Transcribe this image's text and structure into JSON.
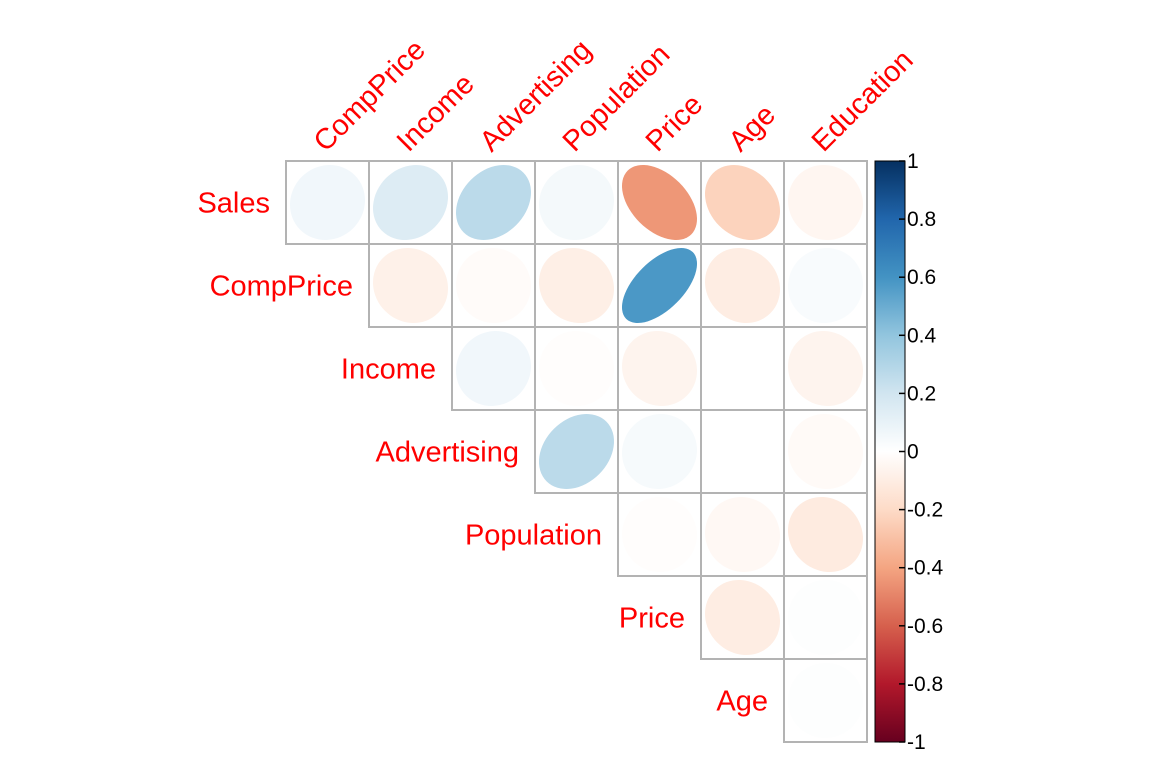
{
  "chart_data": {
    "type": "heatmap",
    "subtype": "correlation-ellipse-upper-triangle",
    "row_labels": [
      "Sales",
      "CompPrice",
      "Income",
      "Advertising",
      "Population",
      "Price",
      "Age"
    ],
    "col_labels": [
      "CompPrice",
      "Income",
      "Advertising",
      "Population",
      "Price",
      "Age",
      "Education"
    ],
    "cells": [
      {
        "row": "Sales",
        "col": "CompPrice",
        "value": 0.06
      },
      {
        "row": "Sales",
        "col": "Income",
        "value": 0.15
      },
      {
        "row": "Sales",
        "col": "Advertising",
        "value": 0.27
      },
      {
        "row": "Sales",
        "col": "Population",
        "value": 0.05
      },
      {
        "row": "Sales",
        "col": "Price",
        "value": -0.44
      },
      {
        "row": "Sales",
        "col": "Age",
        "value": -0.23
      },
      {
        "row": "Sales",
        "col": "Education",
        "value": -0.05
      },
      {
        "row": "CompPrice",
        "col": "Income",
        "value": -0.08
      },
      {
        "row": "CompPrice",
        "col": "Advertising",
        "value": -0.02
      },
      {
        "row": "CompPrice",
        "col": "Population",
        "value": -0.09
      },
      {
        "row": "CompPrice",
        "col": "Price",
        "value": 0.58
      },
      {
        "row": "CompPrice",
        "col": "Age",
        "value": -0.1
      },
      {
        "row": "CompPrice",
        "col": "Education",
        "value": 0.03
      },
      {
        "row": "Income",
        "col": "Advertising",
        "value": 0.06
      },
      {
        "row": "Income",
        "col": "Population",
        "value": -0.01
      },
      {
        "row": "Income",
        "col": "Price",
        "value": -0.06
      },
      {
        "row": "Income",
        "col": "Age",
        "value": 0.0
      },
      {
        "row": "Income",
        "col": "Education",
        "value": -0.06
      },
      {
        "row": "Advertising",
        "col": "Population",
        "value": 0.27
      },
      {
        "row": "Advertising",
        "col": "Price",
        "value": 0.04
      },
      {
        "row": "Advertising",
        "col": "Age",
        "value": 0.0
      },
      {
        "row": "Advertising",
        "col": "Education",
        "value": -0.03
      },
      {
        "row": "Population",
        "col": "Price",
        "value": -0.01
      },
      {
        "row": "Population",
        "col": "Age",
        "value": -0.04
      },
      {
        "row": "Population",
        "col": "Education",
        "value": -0.11
      },
      {
        "row": "Price",
        "col": "Age",
        "value": -0.1
      },
      {
        "row": "Price",
        "col": "Education",
        "value": 0.01
      },
      {
        "row": "Age",
        "col": "Education",
        "value": 0.01
      }
    ],
    "colorbar": {
      "range": [
        -1,
        1
      ],
      "ticks": [
        "1",
        "0.8",
        "0.6",
        "0.4",
        "0.2",
        "0",
        "-0.2",
        "-0.4",
        "-0.6",
        "-0.8",
        "-1"
      ],
      "palette": [
        "#67001F",
        "#B2182B",
        "#D6604D",
        "#F4A582",
        "#FDDBC7",
        "#FFFFFF",
        "#D1E5F0",
        "#92C5DE",
        "#4393C3",
        "#2166AC",
        "#053061"
      ]
    },
    "label_color": "#FF0000",
    "grid": true,
    "legend_position": "right"
  }
}
